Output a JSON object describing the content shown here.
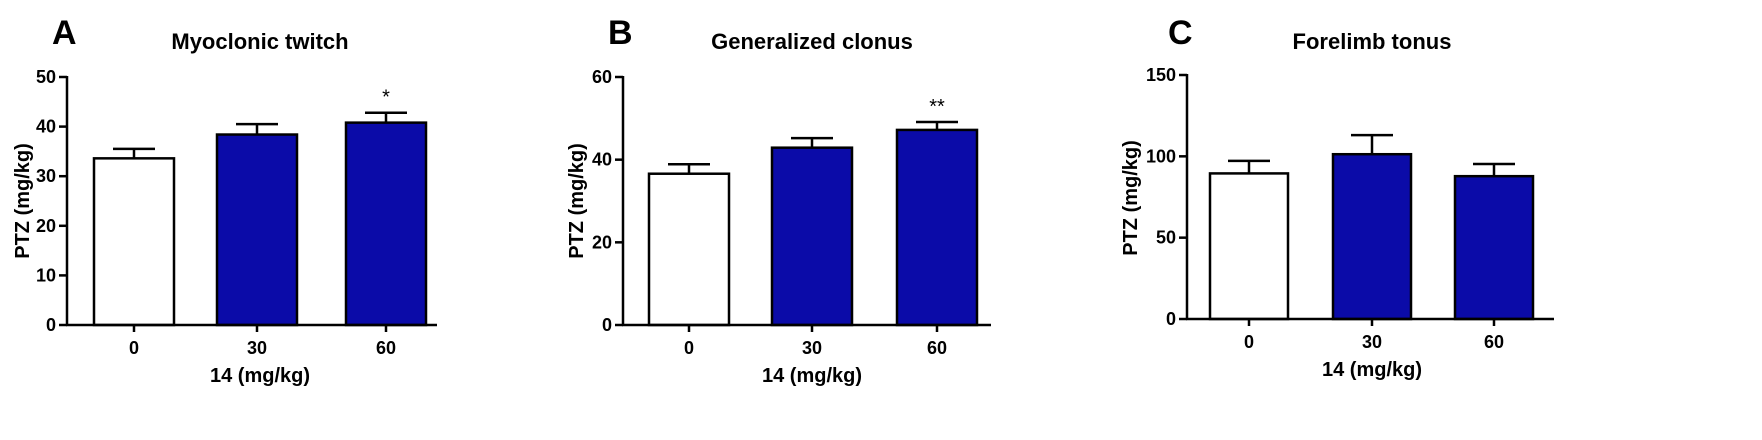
{
  "chart_data": [
    {
      "type": "bar",
      "panel_label": "A",
      "title": "Myoclonic twitch",
      "xlabel": "14 (mg/kg)",
      "ylabel": "PTZ (mg/kg)",
      "ylim": [
        0,
        50
      ],
      "yticks": [
        0,
        10,
        20,
        30,
        40,
        50
      ],
      "categories": [
        "0",
        "30",
        "60"
      ],
      "values": [
        33.6,
        38.4,
        40.8
      ],
      "errors": [
        1.9,
        2.1,
        2.0
      ],
      "significance": [
        "",
        "",
        "*"
      ],
      "fill_colors": [
        "#ffffff",
        "#0b0ba8",
        "#0b0ba8"
      ],
      "grid": false,
      "legend": "none"
    },
    {
      "type": "bar",
      "panel_label": "B",
      "title": "Generalized clonus",
      "xlabel": "14 (mg/kg)",
      "ylabel": "PTZ (mg/kg)",
      "ylim": [
        0,
        60
      ],
      "yticks": [
        0,
        20,
        40,
        60
      ],
      "categories": [
        "0",
        "30",
        "60"
      ],
      "values": [
        36.6,
        42.9,
        47.2
      ],
      "errors": [
        2.3,
        2.3,
        1.9
      ],
      "significance": [
        "",
        "",
        "**"
      ],
      "fill_colors": [
        "#ffffff",
        "#0b0ba8",
        "#0b0ba8"
      ],
      "grid": false,
      "legend": "none"
    },
    {
      "type": "bar",
      "panel_label": "C",
      "title": "Forelimb tonus",
      "xlabel": "14 (mg/kg)",
      "ylabel": "PTZ (mg/kg)",
      "ylim": [
        0,
        150
      ],
      "yticks": [
        0,
        50,
        100,
        150
      ],
      "categories": [
        "0",
        "30",
        "60"
      ],
      "values": [
        89.5,
        101.3,
        87.8
      ],
      "errors": [
        7.7,
        11.7,
        7.5
      ],
      "significance": [
        "",
        "",
        ""
      ],
      "fill_colors": [
        "#ffffff",
        "#0b0ba8",
        "#0b0ba8"
      ],
      "grid": false,
      "legend": "none"
    }
  ]
}
